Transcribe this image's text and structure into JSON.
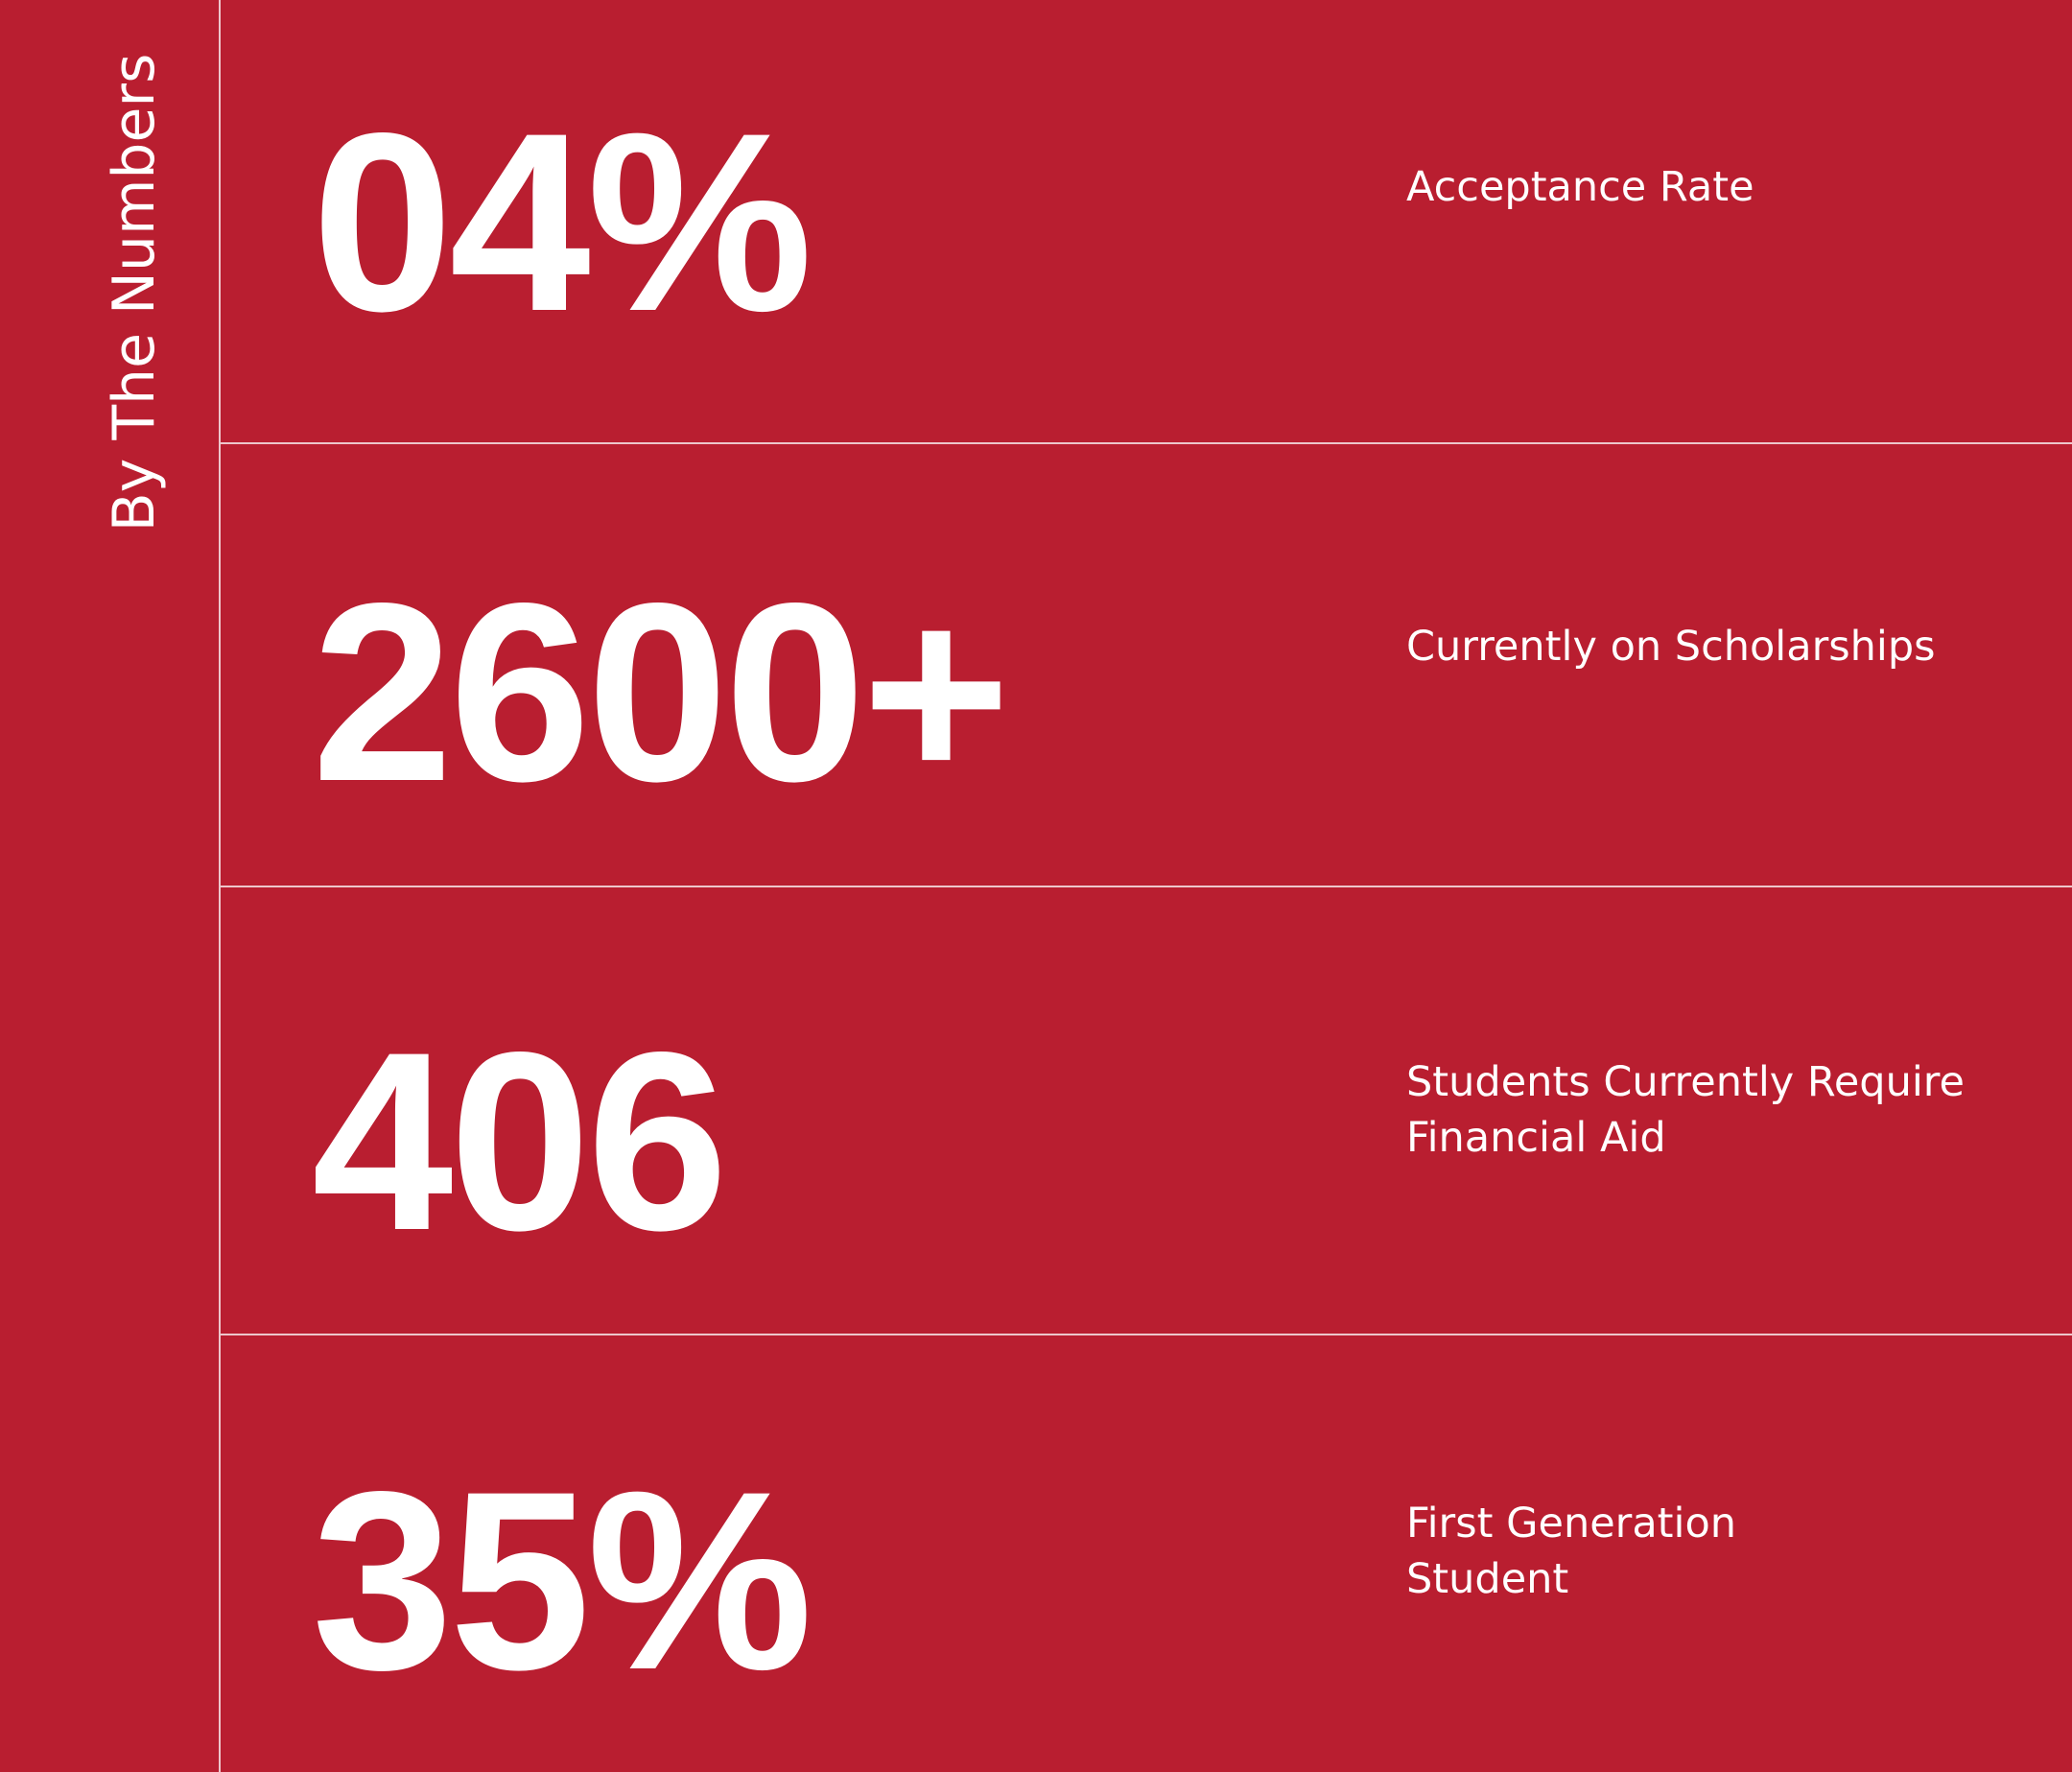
{
  "sidebar": {
    "title": "By The Numbers"
  },
  "stats": [
    {
      "value": "04%",
      "label": "Acceptance Rate"
    },
    {
      "value": "2600+",
      "label": "Currently on Scholarships"
    },
    {
      "value": "406",
      "label": "Students Currently Require Financial Aid"
    },
    {
      "value": "35%",
      "label": "First Generation Student"
    }
  ],
  "colors": {
    "background": "#b91e30",
    "text": "#ffffff"
  }
}
